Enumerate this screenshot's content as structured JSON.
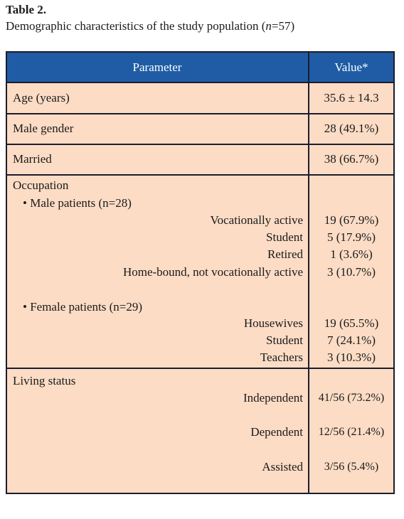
{
  "header": {
    "title": "Table 2.",
    "caption": [
      "Demographic characteristics of the study population (",
      "n",
      "=57)"
    ]
  },
  "table": {
    "columns": [
      "Parameter",
      "Value*"
    ],
    "rows": [
      {
        "parameter": "Age (years)",
        "value": "35.6 ± 14.3"
      },
      {
        "parameter": "Male gender",
        "value": "28 (49.1%)"
      },
      {
        "parameter": "Married",
        "value": "38 (66.7%)"
      }
    ],
    "occupation": {
      "label": "Occupation",
      "groups": [
        {
          "label": "• Male patients (n=28)",
          "items": [
            {
              "label": "Vocationally active",
              "value": "19 (67.9%)"
            },
            {
              "label": "Student",
              "value": "5 (17.9%)"
            },
            {
              "label": "Retired",
              "value": "1 (3.6%)"
            },
            {
              "label": "Home-bound, not vocationally active",
              "value": "3 (10.7%)"
            }
          ]
        },
        {
          "label": "• Female patients (n=29)",
          "items": [
            {
              "label": "Housewives",
              "value": "19 (65.5%)"
            },
            {
              "label": "Student",
              "value": "7 (24.1%)"
            },
            {
              "label": "Teachers",
              "value": "3 (10.3%)"
            }
          ]
        }
      ]
    },
    "living": {
      "label": "Living status",
      "items": [
        {
          "label": "Independent",
          "value": "41/56 (73.2%)"
        },
        {
          "label": "Dependent",
          "value": "12/56 (21.4%)"
        },
        {
          "label": "Assisted",
          "value": "3/56 (5.4%)"
        }
      ]
    }
  }
}
